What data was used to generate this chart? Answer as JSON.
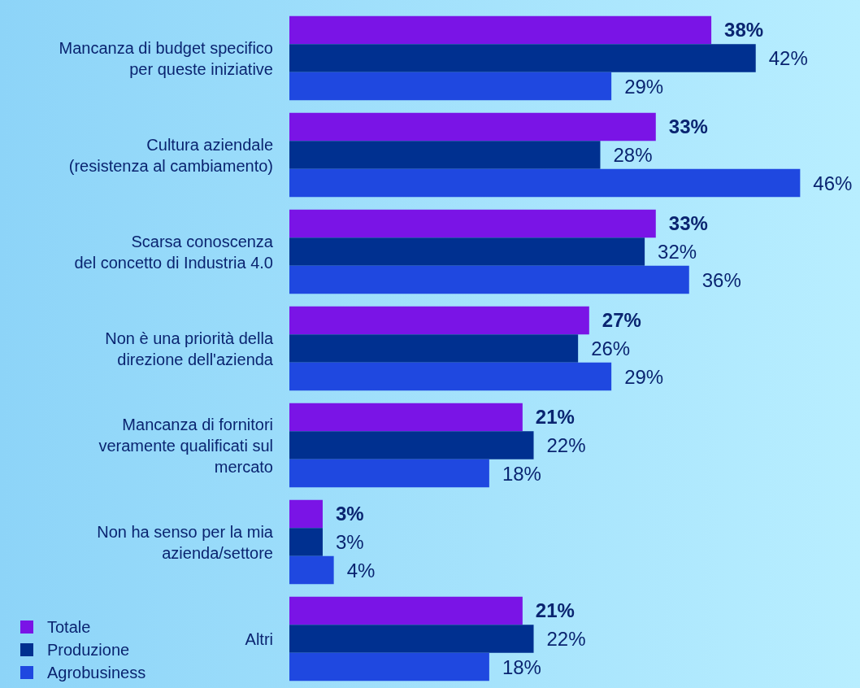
{
  "chart_data": {
    "type": "bar",
    "orientation": "horizontal",
    "legend": "bottom left",
    "categories": [
      "Mancanza di budget specifico\nper queste iniziative",
      "Cultura aziendale\n(resistenza al cambiamento)",
      "Scarsa conoscenza\ndel concetto di Industria 4.0",
      "Non è una priorità della\ndirezione dell'azienda",
      "Mancanza di fornitori\nveramente qualificati sul\nmercato",
      "Non ha senso per la mia\nazienda/settore",
      "Altri"
    ],
    "series": [
      {
        "name": "Totale",
        "color": "#7a14e6",
        "values": [
          38,
          33,
          33,
          27,
          21,
          3,
          21
        ],
        "value_labels": [
          "38%",
          "33%",
          "33%",
          "27%",
          "21%",
          "3%",
          "21%"
        ]
      },
      {
        "name": "Produzione",
        "color": "#003090",
        "values": [
          42,
          28,
          32,
          26,
          22,
          3,
          22
        ],
        "value_labels": [
          "42%",
          "28%",
          "32%",
          "26%",
          "22%",
          "3%",
          "22%"
        ]
      },
      {
        "name": "Agrobusiness",
        "color": "#1f48e0",
        "values": [
          29,
          46,
          36,
          29,
          18,
          4,
          18
        ],
        "value_labels": [
          "29%",
          "46%",
          "36%",
          "29%",
          "18%",
          "4%",
          "18%"
        ]
      }
    ]
  }
}
